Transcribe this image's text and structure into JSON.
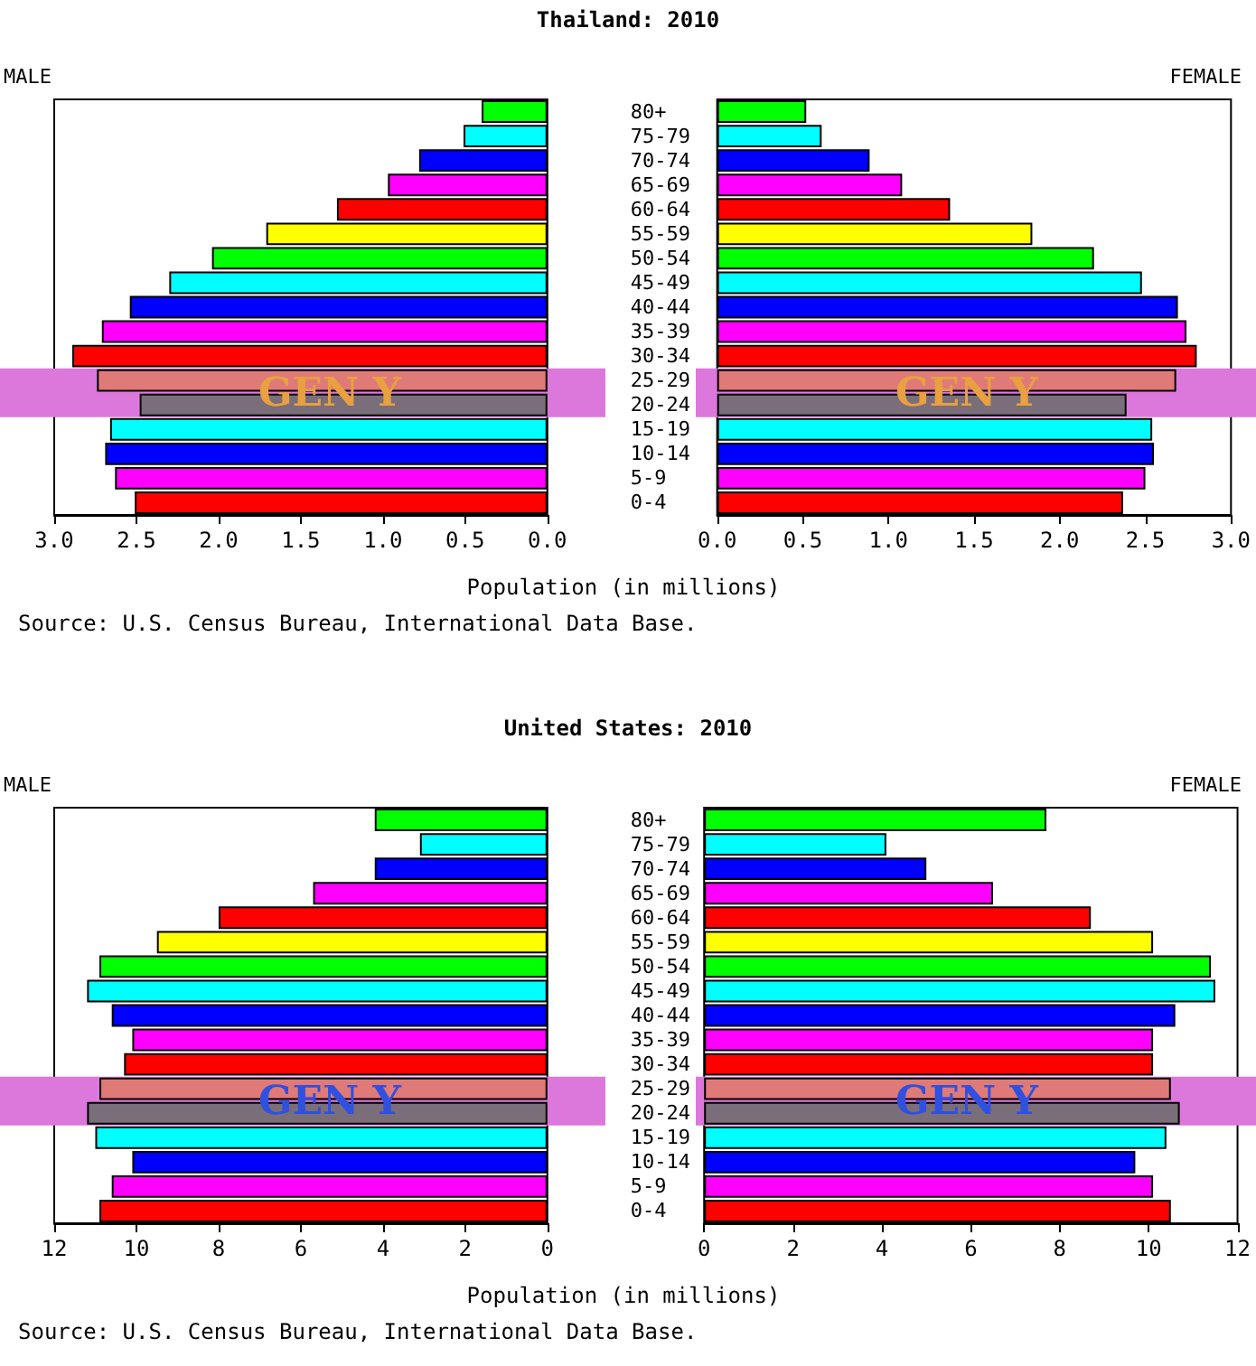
{
  "chart_data": [
    {
      "type": "bar",
      "orientation": "horizontal",
      "title": "Thailand: 2010",
      "xlabel": "Population (in millions)",
      "annotations": [
        "Source: U.S. Census Bureau, International Data Base."
      ],
      "categories": [
        "80+",
        "75-79",
        "70-74",
        "65-69",
        "60-64",
        "55-59",
        "50-54",
        "45-49",
        "40-44",
        "35-39",
        "30-34",
        "25-29",
        "20-24",
        "15-19",
        "10-14",
        "5-9",
        "0-4"
      ],
      "series": [
        {
          "name": "MALE",
          "colors": [
            "#00ff00",
            "#00ffff",
            "#0000ff",
            "#ff00ff",
            "#ff0000",
            "#ffff00",
            "#00ff00",
            "#00ffff",
            "#0000ff",
            "#ff00ff",
            "#ff0000",
            "#e07a78",
            "#7a6e7a",
            "#00ffff",
            "#0000ff",
            "#ff00ff",
            "#ff0000"
          ],
          "values": [
            0.4,
            0.51,
            0.78,
            0.97,
            1.28,
            1.71,
            2.04,
            2.3,
            2.54,
            2.71,
            2.89,
            2.74,
            2.48,
            2.66,
            2.69,
            2.63,
            2.51
          ]
        }
      ],
      "xlim": [
        3,
        0
      ],
      "xticks": [
        {
          "value": 3,
          "label": "3.0"
        },
        {
          "value": 2.5,
          "label": "2.5"
        },
        {
          "value": 2,
          "label": "2.0"
        },
        {
          "value": 1.5,
          "label": "1.5"
        },
        {
          "value": 1,
          "label": "1.0"
        },
        {
          "value": 0.5,
          "label": "0.5"
        },
        {
          "value": 0,
          "label": "0.0"
        }
      ],
      "bands": [
        {
          "axis": "y",
          "from": "25-29",
          "to": "20-24",
          "label": "GEN Y",
          "color": "#dc78dc"
        }
      ],
      "grid": false
    },
    {
      "type": "bar",
      "orientation": "horizontal",
      "categories": [
        "80+",
        "75-79",
        "70-74",
        "65-69",
        "60-64",
        "55-59",
        "50-54",
        "45-49",
        "40-44",
        "35-39",
        "30-34",
        "25-29",
        "20-24",
        "15-19",
        "10-14",
        "5-9",
        "0-4"
      ],
      "series": [
        {
          "name": "FEMALE",
          "colors": [
            "#00ff00",
            "#00ffff",
            "#0000ff",
            "#ff00ff",
            "#ff0000",
            "#ffff00",
            "#00ff00",
            "#00ffff",
            "#0000ff",
            "#ff00ff",
            "#ff0000",
            "#e07a78",
            "#7a6e7a",
            "#00ffff",
            "#0000ff",
            "#ff00ff",
            "#ff0000"
          ],
          "values": [
            0.52,
            0.61,
            0.89,
            1.08,
            1.36,
            1.84,
            2.2,
            2.48,
            2.69,
            2.74,
            2.8,
            2.68,
            2.39,
            2.54,
            2.55,
            2.5,
            2.37
          ]
        }
      ],
      "xlim": [
        0,
        3
      ],
      "xticks": [
        {
          "value": 0,
          "label": "0.0"
        },
        {
          "value": 0.5,
          "label": "0.5"
        },
        {
          "value": 1,
          "label": "1.0"
        },
        {
          "value": 1.5,
          "label": "1.5"
        },
        {
          "value": 2,
          "label": "2.0"
        },
        {
          "value": 2.5,
          "label": "2.5"
        },
        {
          "value": 3,
          "label": "3.0"
        }
      ],
      "bands": [
        {
          "axis": "y",
          "from": "25-29",
          "to": "20-24",
          "label": "GEN Y",
          "color": "#dc78dc"
        }
      ],
      "grid": false,
      "tick_labels": "x"
    },
    {
      "type": "bar",
      "orientation": "horizontal",
      "title": "United States: 2010",
      "xlabel": "Population (in millions)",
      "annotations": [
        "Source: U.S. Census Bureau, International Data Base."
      ],
      "categories": [
        "80+",
        "75-79",
        "70-74",
        "65-69",
        "60-64",
        "55-59",
        "50-54",
        "45-49",
        "40-44",
        "35-39",
        "30-34",
        "25-29",
        "20-24",
        "15-19",
        "10-14",
        "5-9",
        "0-4"
      ],
      "series": [
        {
          "name": "MALE",
          "colors": [
            "#00ff00",
            "#00ffff",
            "#0000ff",
            "#ff00ff",
            "#ff0000",
            "#ffff00",
            "#00ff00",
            "#00ffff",
            "#0000ff",
            "#ff00ff",
            "#ff0000",
            "#e07a78",
            "#7a6e7a",
            "#00ffff",
            "#0000ff",
            "#ff00ff",
            "#ff0000"
          ],
          "values": [
            4.2,
            3.1,
            4.2,
            5.7,
            8.0,
            9.5,
            10.9,
            11.2,
            10.6,
            10.1,
            10.3,
            10.9,
            11.2,
            11.0,
            10.1,
            10.6,
            10.9
          ]
        }
      ],
      "xlim": [
        12,
        0
      ],
      "xticks": [
        12,
        10,
        8,
        6,
        4,
        2,
        0
      ],
      "bands": [
        {
          "axis": "y",
          "from": "25-29",
          "to": "20-24",
          "label": "GEN Y",
          "color": "#dc78dc"
        }
      ],
      "grid": false
    },
    {
      "type": "bar",
      "orientation": "horizontal",
      "categories": [
        "80+",
        "75-79",
        "70-74",
        "65-69",
        "60-64",
        "55-59",
        "50-54",
        "45-49",
        "40-44",
        "35-39",
        "30-34",
        "25-29",
        "20-24",
        "15-19",
        "10-14",
        "5-9",
        "0-4"
      ],
      "series": [
        {
          "name": "FEMALE",
          "colors": [
            "#00ff00",
            "#00ffff",
            "#0000ff",
            "#ff00ff",
            "#ff0000",
            "#ffff00",
            "#00ff00",
            "#00ffff",
            "#0000ff",
            "#ff00ff",
            "#ff0000",
            "#e07a78",
            "#7a6e7a",
            "#00ffff",
            "#0000ff",
            "#ff00ff",
            "#ff0000"
          ],
          "values": [
            7.7,
            4.1,
            5.0,
            6.5,
            8.7,
            10.1,
            11.4,
            11.5,
            10.6,
            10.1,
            10.1,
            10.5,
            10.7,
            10.4,
            9.7,
            10.1,
            10.5
          ]
        }
      ],
      "xlim": [
        0,
        12
      ],
      "xticks": [
        0,
        2,
        4,
        6,
        8,
        10,
        12
      ],
      "bands": [
        {
          "axis": "y",
          "from": "25-29",
          "to": "20-24",
          "label": "GEN Y",
          "color": "#dc78dc"
        }
      ],
      "grid": false,
      "tick_labels": "x"
    }
  ]
}
